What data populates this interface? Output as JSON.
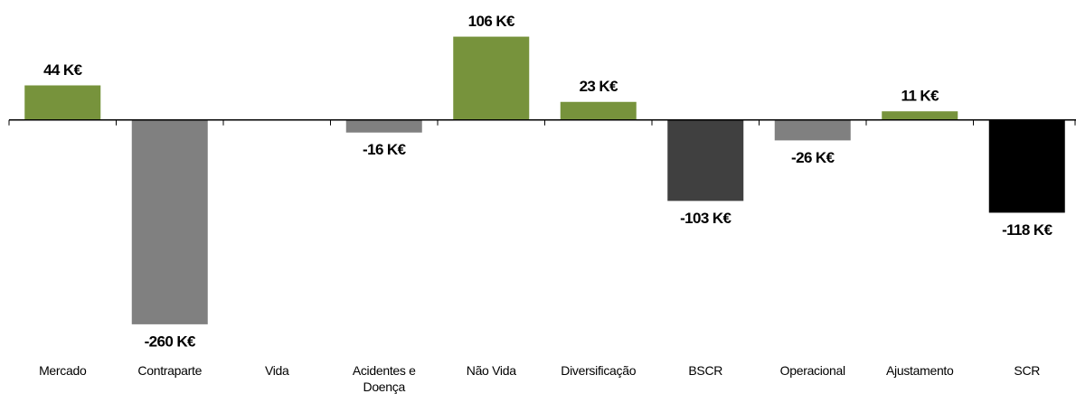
{
  "chart_data": {
    "type": "bar",
    "categories": [
      "Mercado",
      "Contraparte",
      "Vida",
      "Acidentes e\nDoença",
      "Não Vida",
      "Diversificação",
      "BSCR",
      "Operacional",
      "Ajustamento",
      "SCR"
    ],
    "values": [
      44,
      -260,
      null,
      -16,
      106,
      23,
      -103,
      -26,
      11,
      -118
    ],
    "value_labels": [
      "44 K€",
      "-260 K€",
      null,
      "-16 K€",
      "106 K€",
      "23 K€",
      "-103 K€",
      "-26 K€",
      "11 K€",
      "-118 K€"
    ],
    "colors": [
      "#77933c",
      "#808080",
      "#808080",
      "#808080",
      "#77933c",
      "#77933c",
      "#404040",
      "#808080",
      "#77933c",
      "#000000"
    ],
    "ylim": [
      -290,
      140
    ]
  }
}
